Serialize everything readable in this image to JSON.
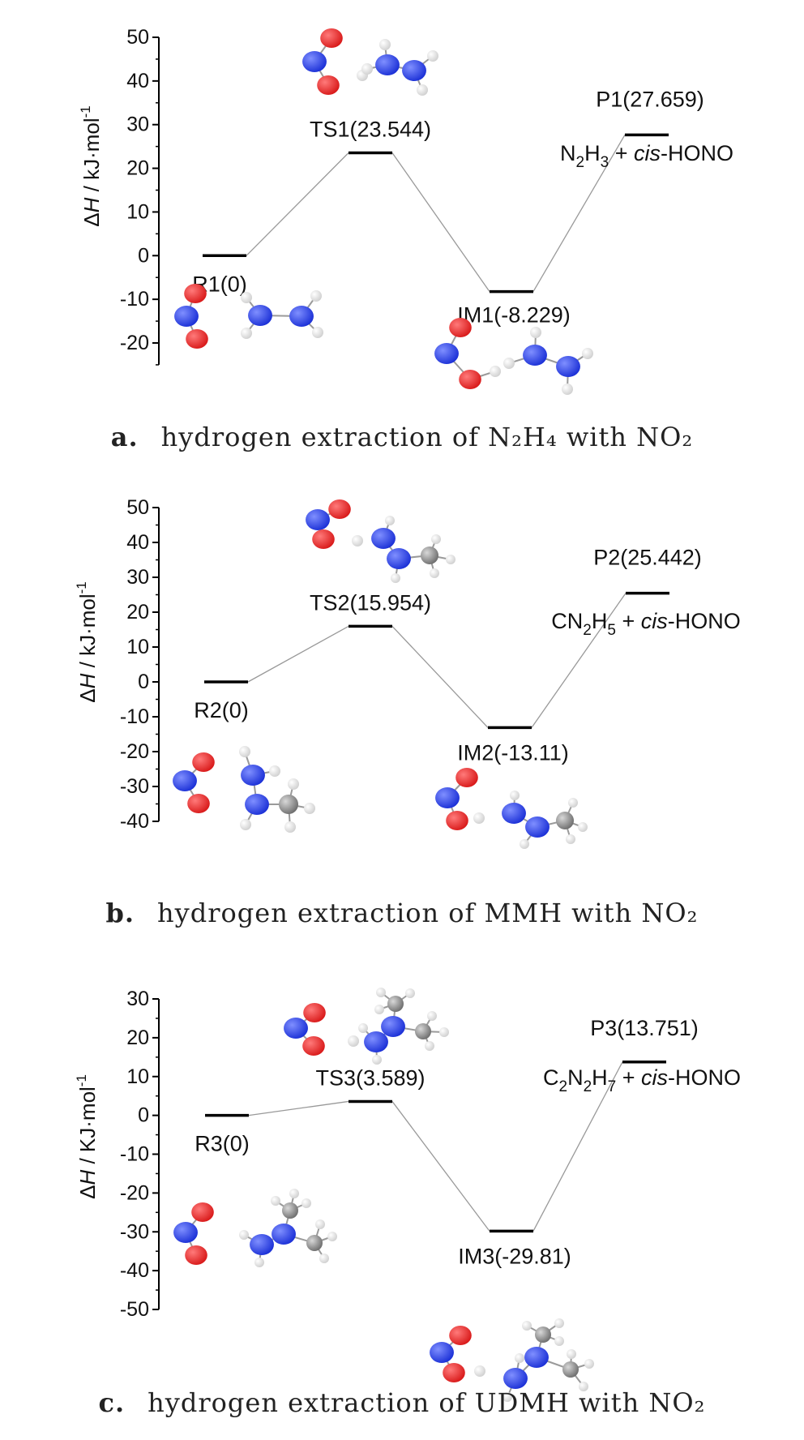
{
  "chart_data": [
    {
      "type": "line",
      "ylabel": "ΔH / kJ·mol",
      "ylabel_sup": "-1",
      "ylim": [
        -25,
        50
      ],
      "yticks": [
        50,
        40,
        30,
        20,
        10,
        0,
        -10,
        -20
      ],
      "ytick_labels": [
        "50",
        "40",
        "30",
        "20",
        "10",
        "0",
        "-10",
        "-20"
      ],
      "levels": [
        {
          "label": "R1(0)",
          "value": 0
        },
        {
          "label": "TS1(23.544)",
          "value": 23.544
        },
        {
          "label": "IM1(-8.229)",
          "value": -8.229
        },
        {
          "label": "P1(27.659)",
          "value": 27.659
        }
      ],
      "product": {
        "species": "N",
        "sub1": "2",
        "species2": "H",
        "sub2": "3",
        "plus": "+",
        "italic": "cis",
        "rest": "-HONO"
      },
      "caption": {
        "label": "a.",
        "text": "hydrogen extraction of N₂H₄ with NO₂"
      },
      "molecules": [
        {
          "atoms": "reactant-N2H4-NO2"
        },
        {
          "atoms": "ts-N2H4-NO2"
        },
        {
          "atoms": "im-N2H4-NO2"
        }
      ]
    },
    {
      "type": "line",
      "ylabel": "ΔH / kJ·mol",
      "ylabel_sup": "-1",
      "ylim": [
        -40,
        50
      ],
      "yticks": [
        50,
        40,
        30,
        20,
        10,
        0,
        -10,
        -20,
        -30,
        -40
      ],
      "ytick_labels": [
        "50",
        "40",
        "30",
        "20",
        "10",
        "0",
        "-10",
        "-20",
        "-30",
        "-40"
      ],
      "levels": [
        {
          "label": "R2(0)",
          "value": 0
        },
        {
          "label": "TS2(15.954)",
          "value": 15.954
        },
        {
          "label": "IM2(-13.11)",
          "value": -13.11
        },
        {
          "label": "P2(25.442)",
          "value": 25.442
        }
      ],
      "product": {
        "species": "CN",
        "sub1": "2",
        "species2": "H",
        "sub2": "5",
        "plus": "+",
        "italic": "cis",
        "rest": "-HONO"
      },
      "caption": {
        "label": "b.",
        "text": "hydrogen extraction of MMH with NO₂"
      }
    },
    {
      "type": "line",
      "ylabel": "ΔH / KJ·mol",
      "ylabel_sup": "-1",
      "ylim": [
        -50,
        30
      ],
      "yticks": [
        30,
        20,
        10,
        0,
        -10,
        -20,
        -30,
        -40,
        -50
      ],
      "ytick_labels": [
        "30",
        "20",
        "10",
        "0",
        "-10",
        "-20",
        "-30",
        "-40",
        "-50"
      ],
      "levels": [
        {
          "label": "R3(0)",
          "value": 0
        },
        {
          "label": "TS3(3.589)",
          "value": 3.589
        },
        {
          "label": "IM3(-29.81)",
          "value": -29.81
        },
        {
          "label": "P3(13.751)",
          "value": 13.751
        }
      ],
      "product": {
        "species": "C",
        "sub1": "2",
        "species2": "N",
        "sub2": "2",
        "species3": "H",
        "sub3": "7",
        "plus": "+",
        "italic": "cis",
        "rest": "-HONO"
      },
      "caption": {
        "label": "c.",
        "text": "hydrogen extraction of UDMH with NO₂"
      }
    }
  ],
  "colors": {
    "oxygen": "#d81818",
    "nitrogen": "#1a2fd6",
    "hydrogen": "#e6e6e6",
    "carbon": "#8c8c8c",
    "level": "#000000",
    "connector": "#999999"
  }
}
